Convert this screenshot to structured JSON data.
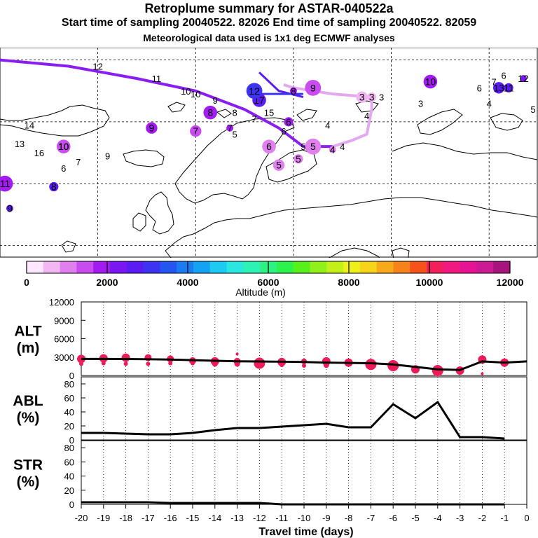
{
  "header": {
    "title": "Retroplume summary for ASTAR-040522a",
    "sampling_line": "Start time of sampling 20040522. 82026     End time of sampling 20040522. 82059",
    "met_line": "Meteorological data used is 1x1 deg ECMWF analyses"
  },
  "colorbar": {
    "label": "Altitude (m)",
    "ticks": [
      "0",
      "2000",
      "4000",
      "6000",
      "8000",
      "10000",
      "12000"
    ],
    "colors": [
      "#ffe8ff",
      "#f2b6f2",
      "#e080ee",
      "#c84cf0",
      "#a21cf2",
      "#7a16f2",
      "#5a1cf2",
      "#3c34f2",
      "#2454f2",
      "#1a7cf2",
      "#16a2f2",
      "#1ccaf2",
      "#2ae8e0",
      "#2cf2b4",
      "#2cf284",
      "#2cf24c",
      "#58f01a",
      "#90f01a",
      "#c4f01a",
      "#eef01a",
      "#f6d41a",
      "#f6aa1a",
      "#f6821a",
      "#f6521a",
      "#f2205a",
      "#f21882",
      "#e61494",
      "#cc1a94",
      "#a8147e"
    ]
  },
  "map": {
    "labels": [
      {
        "t": "12",
        "lat": 69,
        "lon": -40
      },
      {
        "t": "11",
        "lat": 67,
        "lon": -28
      },
      {
        "t": "10",
        "lat": 65,
        "lon": -22
      },
      {
        "t": "9",
        "lat": 63.5,
        "lon": -16
      },
      {
        "t": "8",
        "lat": 61.5,
        "lon": -12
      },
      {
        "t": "7",
        "lat": 60.5,
        "lon": -8
      },
      {
        "t": "6",
        "lat": 58.5,
        "lon": -2
      },
      {
        "t": "5",
        "lat": 56,
        "lon": 2
      },
      {
        "t": "4",
        "lat": 56,
        "lon": 10
      },
      {
        "t": "3",
        "lat": 64,
        "lon": 18
      },
      {
        "t": "13",
        "lat": 56.5,
        "lon": -56
      },
      {
        "t": "14",
        "lat": 59.5,
        "lon": -54
      },
      {
        "t": "16",
        "lat": 55,
        "lon": -52
      },
      {
        "t": "10",
        "lat": 56,
        "lon": -47
      },
      {
        "t": "7",
        "lat": 53.5,
        "lon": -44
      },
      {
        "t": "9",
        "lat": 54.5,
        "lon": -38
      },
      {
        "t": "6",
        "lat": 52.5,
        "lon": -47
      },
      {
        "t": "5",
        "lat": 58,
        "lon": -12
      },
      {
        "t": "15",
        "lat": 61.5,
        "lon": -5
      },
      {
        "t": "4",
        "lat": 59.5,
        "lon": 7
      },
      {
        "t": "4",
        "lat": 61,
        "lon": 15
      },
      {
        "t": "3",
        "lat": 63,
        "lon": 26
      },
      {
        "t": "7",
        "lat": 66.5,
        "lon": 41
      },
      {
        "t": "6",
        "lat": 65.5,
        "lon": 38
      },
      {
        "t": "4",
        "lat": 63,
        "lon": 40
      },
      {
        "t": "5",
        "lat": 62,
        "lon": 49
      },
      {
        "t": "6",
        "lat": 67.5,
        "lon": 43
      },
      {
        "t": "10",
        "lat": 64.5,
        "lon": -20
      }
    ],
    "markers": [
      {
        "t": "12",
        "lat": 67,
        "lon": 47,
        "c": "#7a16f2"
      },
      {
        "t": "11",
        "lat": 65.5,
        "lon": 44,
        "c": "#5a1cf2"
      },
      {
        "t": "13",
        "lat": 65.5,
        "lon": 42,
        "c": "#5a1cf2"
      },
      {
        "t": "10",
        "lat": 66.5,
        "lon": 28,
        "c": "#a21cf2"
      },
      {
        "t": "9",
        "lat": 65.5,
        "lon": 4,
        "c": "#c84cf0"
      },
      {
        "t": "8",
        "lat": 65,
        "lon": 0,
        "c": "#a21cf2"
      },
      {
        "t": "3",
        "lat": 64,
        "lon": 16,
        "c": "#f2b6f2"
      },
      {
        "t": "3",
        "lat": 64,
        "lon": 14,
        "c": "#f2b6f2"
      },
      {
        "t": "17",
        "lat": 63.5,
        "lon": -7,
        "c": "#5a1cf2"
      },
      {
        "t": "12",
        "lat": 65,
        "lon": -8,
        "c": "#3c34f2"
      },
      {
        "t": "7",
        "lat": 59,
        "lon": -13,
        "c": "#a21cf2"
      },
      {
        "t": "6",
        "lat": 60,
        "lon": -1,
        "c": "#a21cf2"
      },
      {
        "t": "7",
        "lat": 58.5,
        "lon": -20,
        "c": "#c84cf0"
      },
      {
        "t": "6",
        "lat": 56,
        "lon": -5,
        "c": "#e080ee"
      },
      {
        "t": "5",
        "lat": 56,
        "lon": 4,
        "c": "#e080ee"
      },
      {
        "t": "4",
        "lat": 55.5,
        "lon": 8,
        "c": "#e080ee"
      },
      {
        "t": "5",
        "lat": 54,
        "lon": 1,
        "c": "#e080ee"
      },
      {
        "t": "5",
        "lat": 53,
        "lon": -3,
        "c": "#e080ee"
      },
      {
        "t": "10",
        "lat": 56,
        "lon": -47,
        "c": "#c84cf0"
      },
      {
        "t": "11",
        "lat": 50,
        "lon": -59,
        "c": "#a21cf2"
      },
      {
        "t": "9",
        "lat": 46,
        "lon": -58,
        "c": "#5a1cf2"
      },
      {
        "t": "8",
        "lat": 49.5,
        "lon": -49,
        "c": "#5a1cf2"
      },
      {
        "t": "9",
        "lat": 59,
        "lon": -29,
        "c": "#a21cf2"
      },
      {
        "t": "8",
        "lat": 61.5,
        "lon": -17,
        "c": "#a21cf2"
      }
    ]
  },
  "chart_data": {
    "type": "line",
    "x_label": "Travel time (days)",
    "x_ticks": [
      "-20",
      "-19",
      "-18",
      "-17",
      "-16",
      "-15",
      "-14",
      "-13",
      "-12",
      "-11",
      "-10",
      "-9",
      "-8",
      "-7",
      "-6",
      "-5",
      "-4",
      "-3",
      "-2",
      "-1",
      "0"
    ],
    "panels": [
      {
        "name": "ALT",
        "title": "ALT",
        "unit": "(m)",
        "ylim": [
          0,
          12000
        ],
        "y_ticks": [
          "0",
          "3000",
          "6000",
          "9000",
          "12000"
        ],
        "x": [
          -20,
          -19,
          -18,
          -17,
          -16,
          -15,
          -14,
          -13,
          -12,
          -11,
          -10,
          -9,
          -8,
          -7,
          -6,
          -5,
          -4,
          -3,
          -2,
          -1,
          0
        ],
        "values": [
          2700,
          2700,
          2680,
          2650,
          2600,
          2500,
          2400,
          2320,
          2280,
          2250,
          2200,
          2100,
          2050,
          2000,
          1800,
          1400,
          1000,
          900,
          2300,
          2100,
          2300
        ],
        "dots": [
          {
            "x": -20,
            "y": 2700,
            "r": 6
          },
          {
            "x": -20,
            "y": 1900,
            "r": 3
          },
          {
            "x": -19,
            "y": 2800,
            "r": 6
          },
          {
            "x": -19,
            "y": 2000,
            "r": 3
          },
          {
            "x": -18,
            "y": 2900,
            "r": 6
          },
          {
            "x": -18,
            "y": 1900,
            "r": 3
          },
          {
            "x": -17,
            "y": 2900,
            "r": 5
          },
          {
            "x": -17,
            "y": 1900,
            "r": 3
          },
          {
            "x": -16,
            "y": 2700,
            "r": 5
          },
          {
            "x": -16,
            "y": 2000,
            "r": 3
          },
          {
            "x": -15,
            "y": 2400,
            "r": 5
          },
          {
            "x": -15,
            "y": 2000,
            "r": 3
          },
          {
            "x": -14,
            "y": 2300,
            "r": 6
          },
          {
            "x": -14,
            "y": 1900,
            "r": 4
          },
          {
            "x": -13,
            "y": 2300,
            "r": 5
          },
          {
            "x": -13,
            "y": 1900,
            "r": 4
          },
          {
            "x": -13,
            "y": 3500,
            "r": 2
          },
          {
            "x": -12,
            "y": 2000,
            "r": 8
          },
          {
            "x": -11,
            "y": 2200,
            "r": 6
          },
          {
            "x": -11,
            "y": 1700,
            "r": 3
          },
          {
            "x": -10,
            "y": 2300,
            "r": 4
          },
          {
            "x": -10,
            "y": 1600,
            "r": 3
          },
          {
            "x": -9,
            "y": 2300,
            "r": 6
          },
          {
            "x": -9,
            "y": 1700,
            "r": 4
          },
          {
            "x": -8,
            "y": 2100,
            "r": 6
          },
          {
            "x": -7,
            "y": 1800,
            "r": 8
          },
          {
            "x": -6,
            "y": 1600,
            "r": 8
          },
          {
            "x": -5,
            "y": 1000,
            "r": 6
          },
          {
            "x": -4,
            "y": 800,
            "r": 8
          },
          {
            "x": -3,
            "y": 800,
            "r": 6
          },
          {
            "x": -2,
            "y": 2600,
            "r": 6
          },
          {
            "x": -2,
            "y": 300,
            "r": 2
          },
          {
            "x": -1,
            "y": 2100,
            "r": 6
          }
        ]
      },
      {
        "name": "ABL",
        "title": "ABL",
        "unit": "(%)",
        "ylim": [
          0,
          90
        ],
        "y_ticks": [
          "0",
          "20",
          "40",
          "60",
          "80"
        ],
        "x": [
          -20,
          -19,
          -18,
          -17,
          -16,
          -15,
          -14,
          -13,
          -12,
          -11,
          -10,
          -9,
          -8,
          -7,
          -6,
          -5,
          -4,
          -3,
          -2,
          -1
        ],
        "values": [
          10,
          10,
          9,
          8,
          8,
          10,
          14,
          17,
          17,
          19,
          21,
          23,
          18,
          18,
          51,
          31,
          54,
          4,
          4,
          2
        ]
      },
      {
        "name": "STR",
        "title": "STR",
        "unit": "(%)",
        "ylim": [
          0,
          90
        ],
        "y_ticks": [
          "0",
          "20",
          "40",
          "60",
          "80"
        ],
        "x": [
          -20,
          -19,
          -18,
          -17,
          -16,
          -15,
          -14,
          -13,
          -12,
          -11,
          -10,
          -9,
          -8,
          -7,
          -6,
          -5,
          -4,
          -3,
          -2,
          -1
        ],
        "values": [
          3,
          3,
          3,
          3,
          2,
          2,
          2,
          2,
          2,
          0,
          0,
          0,
          0,
          0,
          0,
          0,
          0,
          0,
          0,
          0
        ]
      }
    ]
  }
}
